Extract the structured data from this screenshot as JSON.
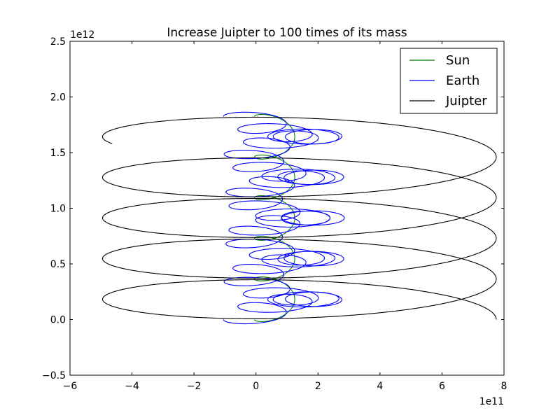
{
  "chart_data": {
    "type": "line",
    "title": "Increase Juipter to 100 times of its mass",
    "xlabel": "",
    "ylabel": "",
    "x_offset_label": "1e11",
    "y_offset_label": "1e12",
    "xlim": [
      -6,
      8
    ],
    "ylim": [
      -0.5,
      2.5
    ],
    "x_ticks": [
      -6,
      -4,
      -2,
      0,
      2,
      4,
      6,
      8
    ],
    "y_ticks": [
      -0.5,
      0.0,
      0.5,
      1.0,
      1.5,
      2.0,
      2.5
    ],
    "x_tick_labels": [
      "−6",
      "−4",
      "−2",
      "0",
      "2",
      "4",
      "6",
      "8"
    ],
    "y_tick_labels": [
      "−0.5",
      "0.0",
      "0.5",
      "1.0",
      "1.5",
      "2.0",
      "2.5"
    ],
    "legend_position": "top-right",
    "grid": false,
    "series": [
      {
        "name": "Sun",
        "color": "#008000",
        "shape": "helix",
        "center_x": 0.6,
        "center_y_start": 0.0,
        "radius_x": 0.65,
        "radius_y": 0.09,
        "rise_per_turn": 0.365,
        "turns": 5,
        "start_phase_deg": 180
      },
      {
        "name": "Earth",
        "color": "#0000ff",
        "shape": "epicycle",
        "center_x": 0.9,
        "center_y_start": 0.0,
        "guide_radius_x": 1.0,
        "guide_radius_y": 0.06,
        "loop_radius_x": 1.0,
        "loop_radius_y": 0.065,
        "rise_per_turn": 0.365,
        "turns": 5,
        "loops_per_turn": 6.2
      },
      {
        "name": "Juipter",
        "color": "#000000",
        "shape": "helix",
        "center_x": 1.4,
        "center_y_start": 0.0,
        "radius_x": 6.35,
        "radius_y": 0.26,
        "rise_per_turn": 0.365,
        "turns": 4.55,
        "start_phase_deg": 0
      }
    ]
  }
}
